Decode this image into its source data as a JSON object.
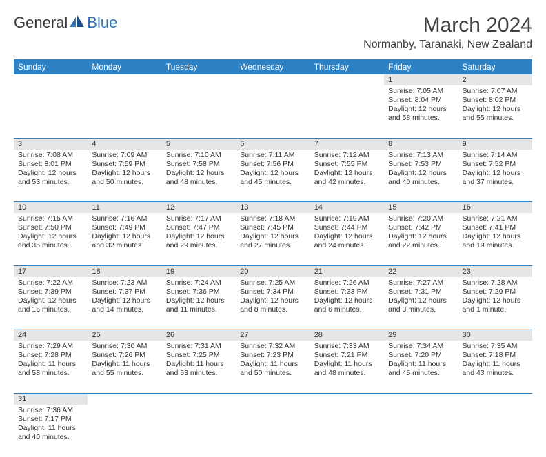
{
  "logo": {
    "text1": "General",
    "text2": "Blue"
  },
  "header": {
    "title": "March 2024",
    "subtitle": "Normanby, Taranaki, New Zealand"
  },
  "weekdays": [
    "Sunday",
    "Monday",
    "Tuesday",
    "Wednesday",
    "Thursday",
    "Friday",
    "Saturday"
  ],
  "colors": {
    "header_bg": "#2e82c4",
    "header_text": "#ffffff",
    "daynum_bg": "#e6e6e6",
    "border": "#2e82c4",
    "logo_blue": "#2e74b5"
  },
  "days": {
    "1": {
      "sunrise": "7:05 AM",
      "sunset": "8:04 PM",
      "daylight": "12 hours and 58 minutes."
    },
    "2": {
      "sunrise": "7:07 AM",
      "sunset": "8:02 PM",
      "daylight": "12 hours and 55 minutes."
    },
    "3": {
      "sunrise": "7:08 AM",
      "sunset": "8:01 PM",
      "daylight": "12 hours and 53 minutes."
    },
    "4": {
      "sunrise": "7:09 AM",
      "sunset": "7:59 PM",
      "daylight": "12 hours and 50 minutes."
    },
    "5": {
      "sunrise": "7:10 AM",
      "sunset": "7:58 PM",
      "daylight": "12 hours and 48 minutes."
    },
    "6": {
      "sunrise": "7:11 AM",
      "sunset": "7:56 PM",
      "daylight": "12 hours and 45 minutes."
    },
    "7": {
      "sunrise": "7:12 AM",
      "sunset": "7:55 PM",
      "daylight": "12 hours and 42 minutes."
    },
    "8": {
      "sunrise": "7:13 AM",
      "sunset": "7:53 PM",
      "daylight": "12 hours and 40 minutes."
    },
    "9": {
      "sunrise": "7:14 AM",
      "sunset": "7:52 PM",
      "daylight": "12 hours and 37 minutes."
    },
    "10": {
      "sunrise": "7:15 AM",
      "sunset": "7:50 PM",
      "daylight": "12 hours and 35 minutes."
    },
    "11": {
      "sunrise": "7:16 AM",
      "sunset": "7:49 PM",
      "daylight": "12 hours and 32 minutes."
    },
    "12": {
      "sunrise": "7:17 AM",
      "sunset": "7:47 PM",
      "daylight": "12 hours and 29 minutes."
    },
    "13": {
      "sunrise": "7:18 AM",
      "sunset": "7:45 PM",
      "daylight": "12 hours and 27 minutes."
    },
    "14": {
      "sunrise": "7:19 AM",
      "sunset": "7:44 PM",
      "daylight": "12 hours and 24 minutes."
    },
    "15": {
      "sunrise": "7:20 AM",
      "sunset": "7:42 PM",
      "daylight": "12 hours and 22 minutes."
    },
    "16": {
      "sunrise": "7:21 AM",
      "sunset": "7:41 PM",
      "daylight": "12 hours and 19 minutes."
    },
    "17": {
      "sunrise": "7:22 AM",
      "sunset": "7:39 PM",
      "daylight": "12 hours and 16 minutes."
    },
    "18": {
      "sunrise": "7:23 AM",
      "sunset": "7:37 PM",
      "daylight": "12 hours and 14 minutes."
    },
    "19": {
      "sunrise": "7:24 AM",
      "sunset": "7:36 PM",
      "daylight": "12 hours and 11 minutes."
    },
    "20": {
      "sunrise": "7:25 AM",
      "sunset": "7:34 PM",
      "daylight": "12 hours and 8 minutes."
    },
    "21": {
      "sunrise": "7:26 AM",
      "sunset": "7:33 PM",
      "daylight": "12 hours and 6 minutes."
    },
    "22": {
      "sunrise": "7:27 AM",
      "sunset": "7:31 PM",
      "daylight": "12 hours and 3 minutes."
    },
    "23": {
      "sunrise": "7:28 AM",
      "sunset": "7:29 PM",
      "daylight": "12 hours and 1 minute."
    },
    "24": {
      "sunrise": "7:29 AM",
      "sunset": "7:28 PM",
      "daylight": "11 hours and 58 minutes."
    },
    "25": {
      "sunrise": "7:30 AM",
      "sunset": "7:26 PM",
      "daylight": "11 hours and 55 minutes."
    },
    "26": {
      "sunrise": "7:31 AM",
      "sunset": "7:25 PM",
      "daylight": "11 hours and 53 minutes."
    },
    "27": {
      "sunrise": "7:32 AM",
      "sunset": "7:23 PM",
      "daylight": "11 hours and 50 minutes."
    },
    "28": {
      "sunrise": "7:33 AM",
      "sunset": "7:21 PM",
      "daylight": "11 hours and 48 minutes."
    },
    "29": {
      "sunrise": "7:34 AM",
      "sunset": "7:20 PM",
      "daylight": "11 hours and 45 minutes."
    },
    "30": {
      "sunrise": "7:35 AM",
      "sunset": "7:18 PM",
      "daylight": "11 hours and 43 minutes."
    },
    "31": {
      "sunrise": "7:36 AM",
      "sunset": "7:17 PM",
      "daylight": "11 hours and 40 minutes."
    }
  },
  "labels": {
    "sunrise": "Sunrise: ",
    "sunset": "Sunset: ",
    "daylight": "Daylight: "
  },
  "grid": {
    "first_weekday_index": 5,
    "num_days": 31
  }
}
